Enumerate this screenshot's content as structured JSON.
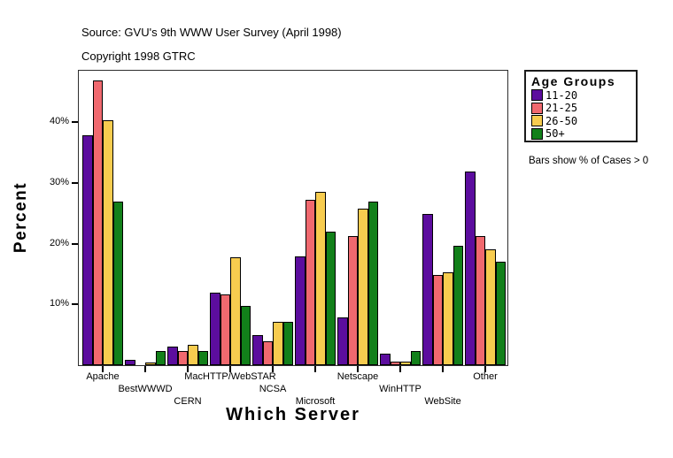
{
  "header": {
    "source_line": "Source: GVU's 9th WWW User Survey (April 1998)",
    "copyright_line": "Copyright 1998 GTRC"
  },
  "legend": {
    "title": "Age Groups",
    "note": "Bars show % of Cases > 0"
  },
  "chart_data": {
    "type": "bar",
    "title": "",
    "xlabel": "Which Server",
    "ylabel": "Percent",
    "ylim": [
      0,
      48.5
    ],
    "grid": false,
    "legend_position": "right-outside",
    "yticks": [
      {
        "value": 10,
        "label": "10%"
      },
      {
        "value": 20,
        "label": "20%"
      },
      {
        "value": 30,
        "label": "30%"
      },
      {
        "value": 40,
        "label": "40%"
      }
    ],
    "categories": [
      "Apache",
      "BestWWWD",
      "CERN",
      "MacHTTP/WebSTAR",
      "NCSA",
      "Microsoft",
      "Netscape",
      "WinHTTP",
      "WebSite",
      "Other"
    ],
    "series": [
      {
        "name": "11-20",
        "color": "#5C0D9E",
        "values": [
          37.8,
          0.9,
          3.0,
          11.9,
          4.9,
          17.9,
          7.9,
          1.9,
          24.9,
          31.9
        ]
      },
      {
        "name": "21-25",
        "color": "#F0696F",
        "values": [
          46.9,
          0,
          2.3,
          11.7,
          4.0,
          27.2,
          21.2,
          0.6,
          14.8,
          21.2
        ]
      },
      {
        "name": "26-50",
        "color": "#F7CC4F",
        "values": [
          40.3,
          0.5,
          3.3,
          17.8,
          7.2,
          28.6,
          25.8,
          0.6,
          15.3,
          19.1
        ]
      },
      {
        "name": "50+",
        "color": "#12801A",
        "values": [
          27.0,
          2.4,
          2.3,
          9.7,
          7.2,
          22.0,
          27.0,
          2.4,
          19.6,
          17.1
        ]
      }
    ]
  }
}
